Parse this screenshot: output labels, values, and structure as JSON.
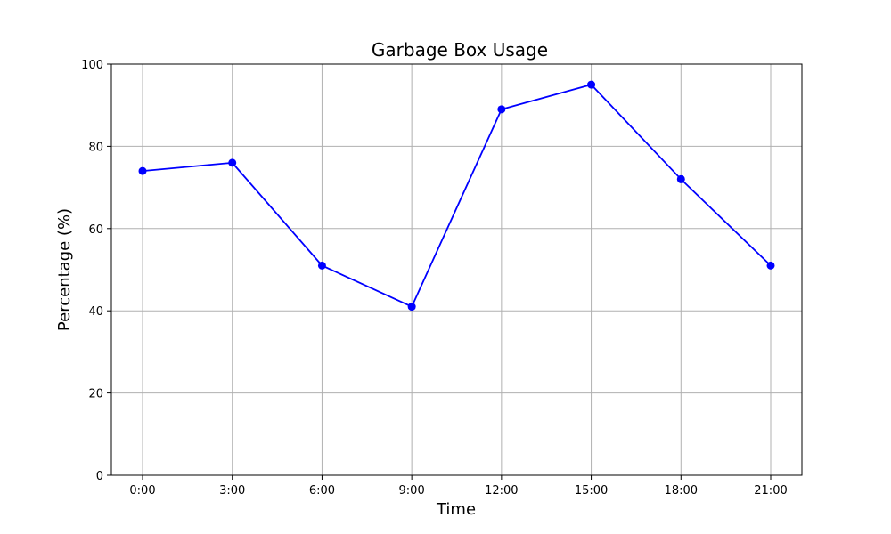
{
  "chart_data": {
    "type": "line",
    "title": "Garbage Box Usage",
    "xlabel": "Time",
    "ylabel": "Percentage (%)",
    "categories": [
      "0:00",
      "3:00",
      "6:00",
      "9:00",
      "12:00",
      "15:00",
      "18:00",
      "21:00"
    ],
    "series": [
      {
        "values": [
          74,
          76,
          51,
          41,
          89,
          95,
          72,
          51
        ]
      }
    ],
    "ylim": [
      0,
      100
    ],
    "yticks": [
      0,
      20,
      40,
      60,
      80,
      100
    ],
    "grid": true,
    "legend": "none",
    "colors": {
      "line": "#0000ff",
      "marker": "#0000ff",
      "grid": "#b0b0b0",
      "axis": "#000000"
    }
  }
}
